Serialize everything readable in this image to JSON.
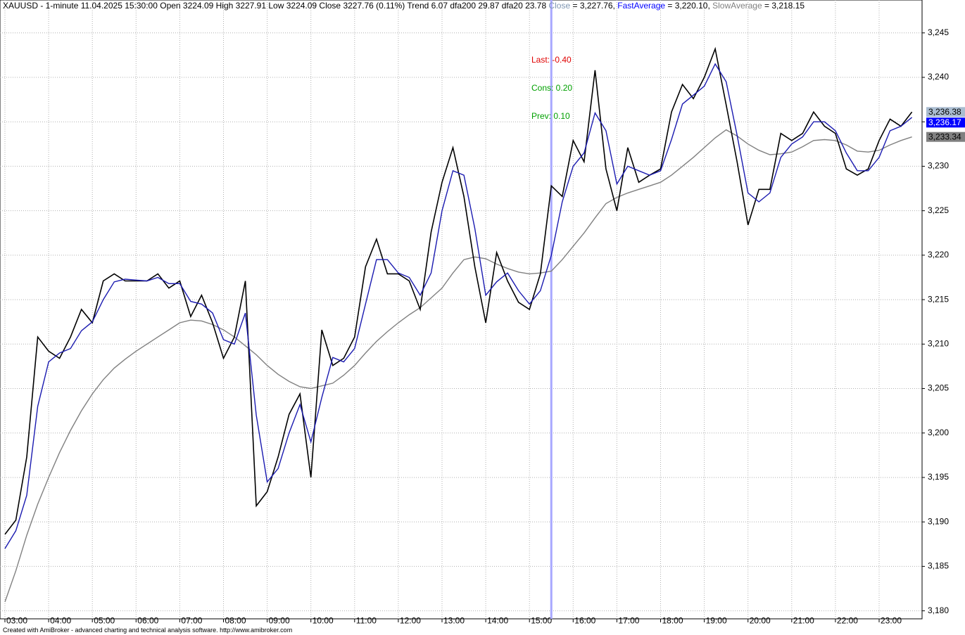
{
  "chart_data": {
    "type": "line",
    "title": "XAUUSD - 1-minute 11.04.2025 15:30:00 Open 3224.09 High 3227.91 Low 3224.09 Close 3227.76 (0.11%) Trend 6.07 dfa200 29.87 dfa20 23.78",
    "categories": [
      "03:00",
      null,
      null,
      null,
      "04:00",
      null,
      null,
      null,
      "05:00",
      null,
      null,
      null,
      "06:00",
      null,
      null,
      null,
      "07:00",
      null,
      null,
      null,
      "08:00",
      null,
      null,
      null,
      "09:00",
      null,
      null,
      null,
      "10:00",
      null,
      null,
      null,
      "11:00",
      null,
      null,
      null,
      "12:00",
      null,
      null,
      null,
      "13:00",
      null,
      null,
      null,
      "14:00",
      null,
      null,
      null,
      "15:00",
      null,
      null,
      null,
      "16:00",
      null,
      null,
      null,
      "17:00",
      null,
      null,
      null,
      "18:00",
      null,
      null,
      null,
      "19:00",
      null,
      null,
      null,
      "20:00",
      null,
      null,
      null,
      "21:00",
      null,
      null,
      null,
      "22:00",
      null,
      null,
      null,
      "23:00",
      null,
      null,
      null
    ],
    "series": [
      {
        "name": "Close",
        "legend_value": "= 3,227.76,",
        "last_label": "3,236.38",
        "color": "#000000",
        "label_color": "#7f96b2",
        "values": [
          3188.6,
          3190.2,
          3197.3,
          3210.8,
          3209.2,
          3208.4,
          3210.8,
          3213.9,
          3212.4,
          3217.1,
          3217.9,
          3217.1,
          3217.1,
          3217.1,
          3217.9,
          3216.3,
          3217.1,
          3213.1,
          3215.5,
          3212.4,
          3208.4,
          3210.8,
          3217.1,
          3191.8,
          3193.4,
          3197.3,
          3202.1,
          3204.4,
          3195.0,
          3211.6,
          3207.6,
          3208.4,
          3210.8,
          3218.7,
          3221.8,
          3217.9,
          3217.9,
          3217.1,
          3213.9,
          3222.6,
          3228.2,
          3232.1,
          3226.6,
          3218.7,
          3212.4,
          3220.3,
          3217.1,
          3214.7,
          3213.9,
          3217.9,
          3227.8,
          3226.6,
          3232.9,
          3230.5,
          3240.8,
          3229.7,
          3225.0,
          3232.1,
          3228.2,
          3229.0,
          3229.7,
          3236.1,
          3239.2,
          3237.6,
          3240.0,
          3243.2,
          3236.9,
          3230.5,
          3223.4,
          3227.4,
          3227.4,
          3233.7,
          3232.9,
          3233.7,
          3236.1,
          3234.5,
          3233.7,
          3229.7,
          3229.0,
          3229.7,
          3232.9,
          3235.3,
          3234.5,
          3236.1
        ]
      },
      {
        "name": "FastAverage",
        "legend_value": "= 3,220.10,",
        "last_label": "3,236.17",
        "color": "#1a1ab0",
        "label_color": "#0000ff",
        "values": [
          3187.0,
          3189.0,
          3193.0,
          3203.0,
          3208.0,
          3209.0,
          3209.5,
          3211.5,
          3212.5,
          3215.0,
          3217.0,
          3217.3,
          3217.2,
          3217.1,
          3217.5,
          3216.8,
          3216.8,
          3214.8,
          3214.5,
          3213.5,
          3210.5,
          3210.0,
          3213.5,
          3202.0,
          3194.5,
          3196.0,
          3200.0,
          3203.2,
          3199.0,
          3204.0,
          3208.5,
          3208.0,
          3209.5,
          3214.5,
          3219.5,
          3219.5,
          3218.0,
          3217.5,
          3215.5,
          3218.0,
          3225.0,
          3229.5,
          3229.0,
          3223.0,
          3215.5,
          3217.0,
          3218.0,
          3216.0,
          3214.5,
          3216.0,
          3220.0,
          3226.0,
          3230.0,
          3231.5,
          3236.0,
          3234.0,
          3228.0,
          3230.0,
          3229.5,
          3229.0,
          3229.5,
          3233.0,
          3237.0,
          3238.0,
          3239.0,
          3241.5,
          3239.5,
          3233.5,
          3227.0,
          3226.0,
          3227.0,
          3231.0,
          3232.5,
          3233.3,
          3235.0,
          3235.0,
          3234.0,
          3231.5,
          3229.5,
          3229.5,
          3231.0,
          3234.0,
          3234.5,
          3235.5
        ]
      },
      {
        "name": "SlowAverage",
        "legend_value": "= 3,218.15",
        "last_label": "3,233.34",
        "color": "#808080",
        "label_color": "#808080",
        "values": [
          3181.0,
          3184.5,
          3188.5,
          3192.0,
          3195.0,
          3197.8,
          3200.3,
          3202.5,
          3204.4,
          3206.0,
          3207.3,
          3208.3,
          3209.2,
          3210.0,
          3210.8,
          3211.6,
          3212.4,
          3212.7,
          3212.6,
          3212.2,
          3211.6,
          3210.8,
          3209.8,
          3208.8,
          3207.6,
          3206.6,
          3205.8,
          3205.2,
          3205.0,
          3205.3,
          3205.6,
          3206.5,
          3207.6,
          3209.0,
          3210.3,
          3211.4,
          3212.4,
          3213.3,
          3214.1,
          3215.2,
          3216.3,
          3218.0,
          3219.5,
          3219.8,
          3219.6,
          3219.0,
          3218.5,
          3218.1,
          3217.9,
          3218.0,
          3218.2,
          3219.5,
          3221.0,
          3222.5,
          3224.2,
          3225.8,
          3226.5,
          3227.0,
          3227.4,
          3227.8,
          3228.2,
          3229.0,
          3230.0,
          3231.0,
          3232.1,
          3233.2,
          3234.1,
          3233.4,
          3232.5,
          3231.8,
          3231.3,
          3231.4,
          3231.6,
          3232.2,
          3232.9,
          3233.0,
          3232.9,
          3232.4,
          3231.7,
          3231.6,
          3231.8,
          3232.4,
          3232.9,
          3233.3
        ]
      }
    ],
    "annotations": [
      {
        "text": "Last: -0.40",
        "color": "#e00000"
      },
      {
        "text": "Cons: 0.20",
        "color": "#00a000"
      },
      {
        "text": "Prev: 0.10",
        "color": "#00a000"
      }
    ],
    "cursor_index": 50,
    "cursor_color": "#a8a8ff",
    "ylim": [
      3179.1,
      3248.7
    ],
    "yticks": [
      {
        "value": 3180,
        "label": "3,180"
      },
      {
        "value": 3185,
        "label": "3,185"
      },
      {
        "value": 3190,
        "label": "3,190"
      },
      {
        "value": 3195,
        "label": "3,195"
      },
      {
        "value": 3200,
        "label": "3,200"
      },
      {
        "value": 3205,
        "label": "3,205"
      },
      {
        "value": 3210,
        "label": "3,210"
      },
      {
        "value": 3215,
        "label": "3,215"
      },
      {
        "value": 3220,
        "label": "3,220"
      },
      {
        "value": 3225,
        "label": "3,225"
      },
      {
        "value": 3230,
        "label": "3,230"
      },
      {
        "value": 3235,
        "label": "3,235"
      },
      {
        "value": 3240,
        "label": "3,240"
      },
      {
        "value": 3245,
        "label": "3,245"
      }
    ],
    "grid": true
  },
  "footer": "Created with AmiBroker - advanced charting and technical analysis software. http://www.amibroker.com"
}
